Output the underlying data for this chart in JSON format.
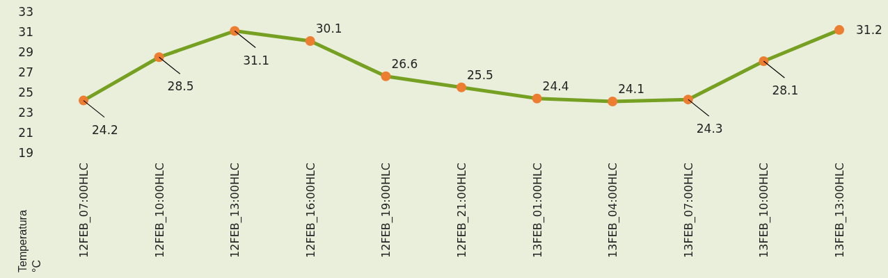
{
  "chart_data": {
    "type": "line",
    "ylabel": "Temperatura\n°C",
    "categories": [
      "12FEB_07:00HLC",
      "12FEB_10:00HLC",
      "12FEB_13:00HLC",
      "12FEB_16:00HLC",
      "12FEB_19:00HLC",
      "12FEB_21:00HLC",
      "13FEB_01:00HLC",
      "13FEB_04:00HLC",
      "13FEB_07:00HLC",
      "13FEB_10:00HLC",
      "13FEB_13:00HLC"
    ],
    "series": [
      {
        "color": "#76a021",
        "values": [
          24.2,
          28.5,
          31.1,
          30.1,
          26.6,
          25.5,
          24.4,
          24.1,
          24.3,
          28.1,
          31.2
        ]
      }
    ],
    "marker": "circle",
    "data_labels": true,
    "ylim": [
      19,
      33
    ],
    "yticks": [
      19,
      21,
      23,
      25,
      27,
      29,
      31,
      33
    ]
  }
}
